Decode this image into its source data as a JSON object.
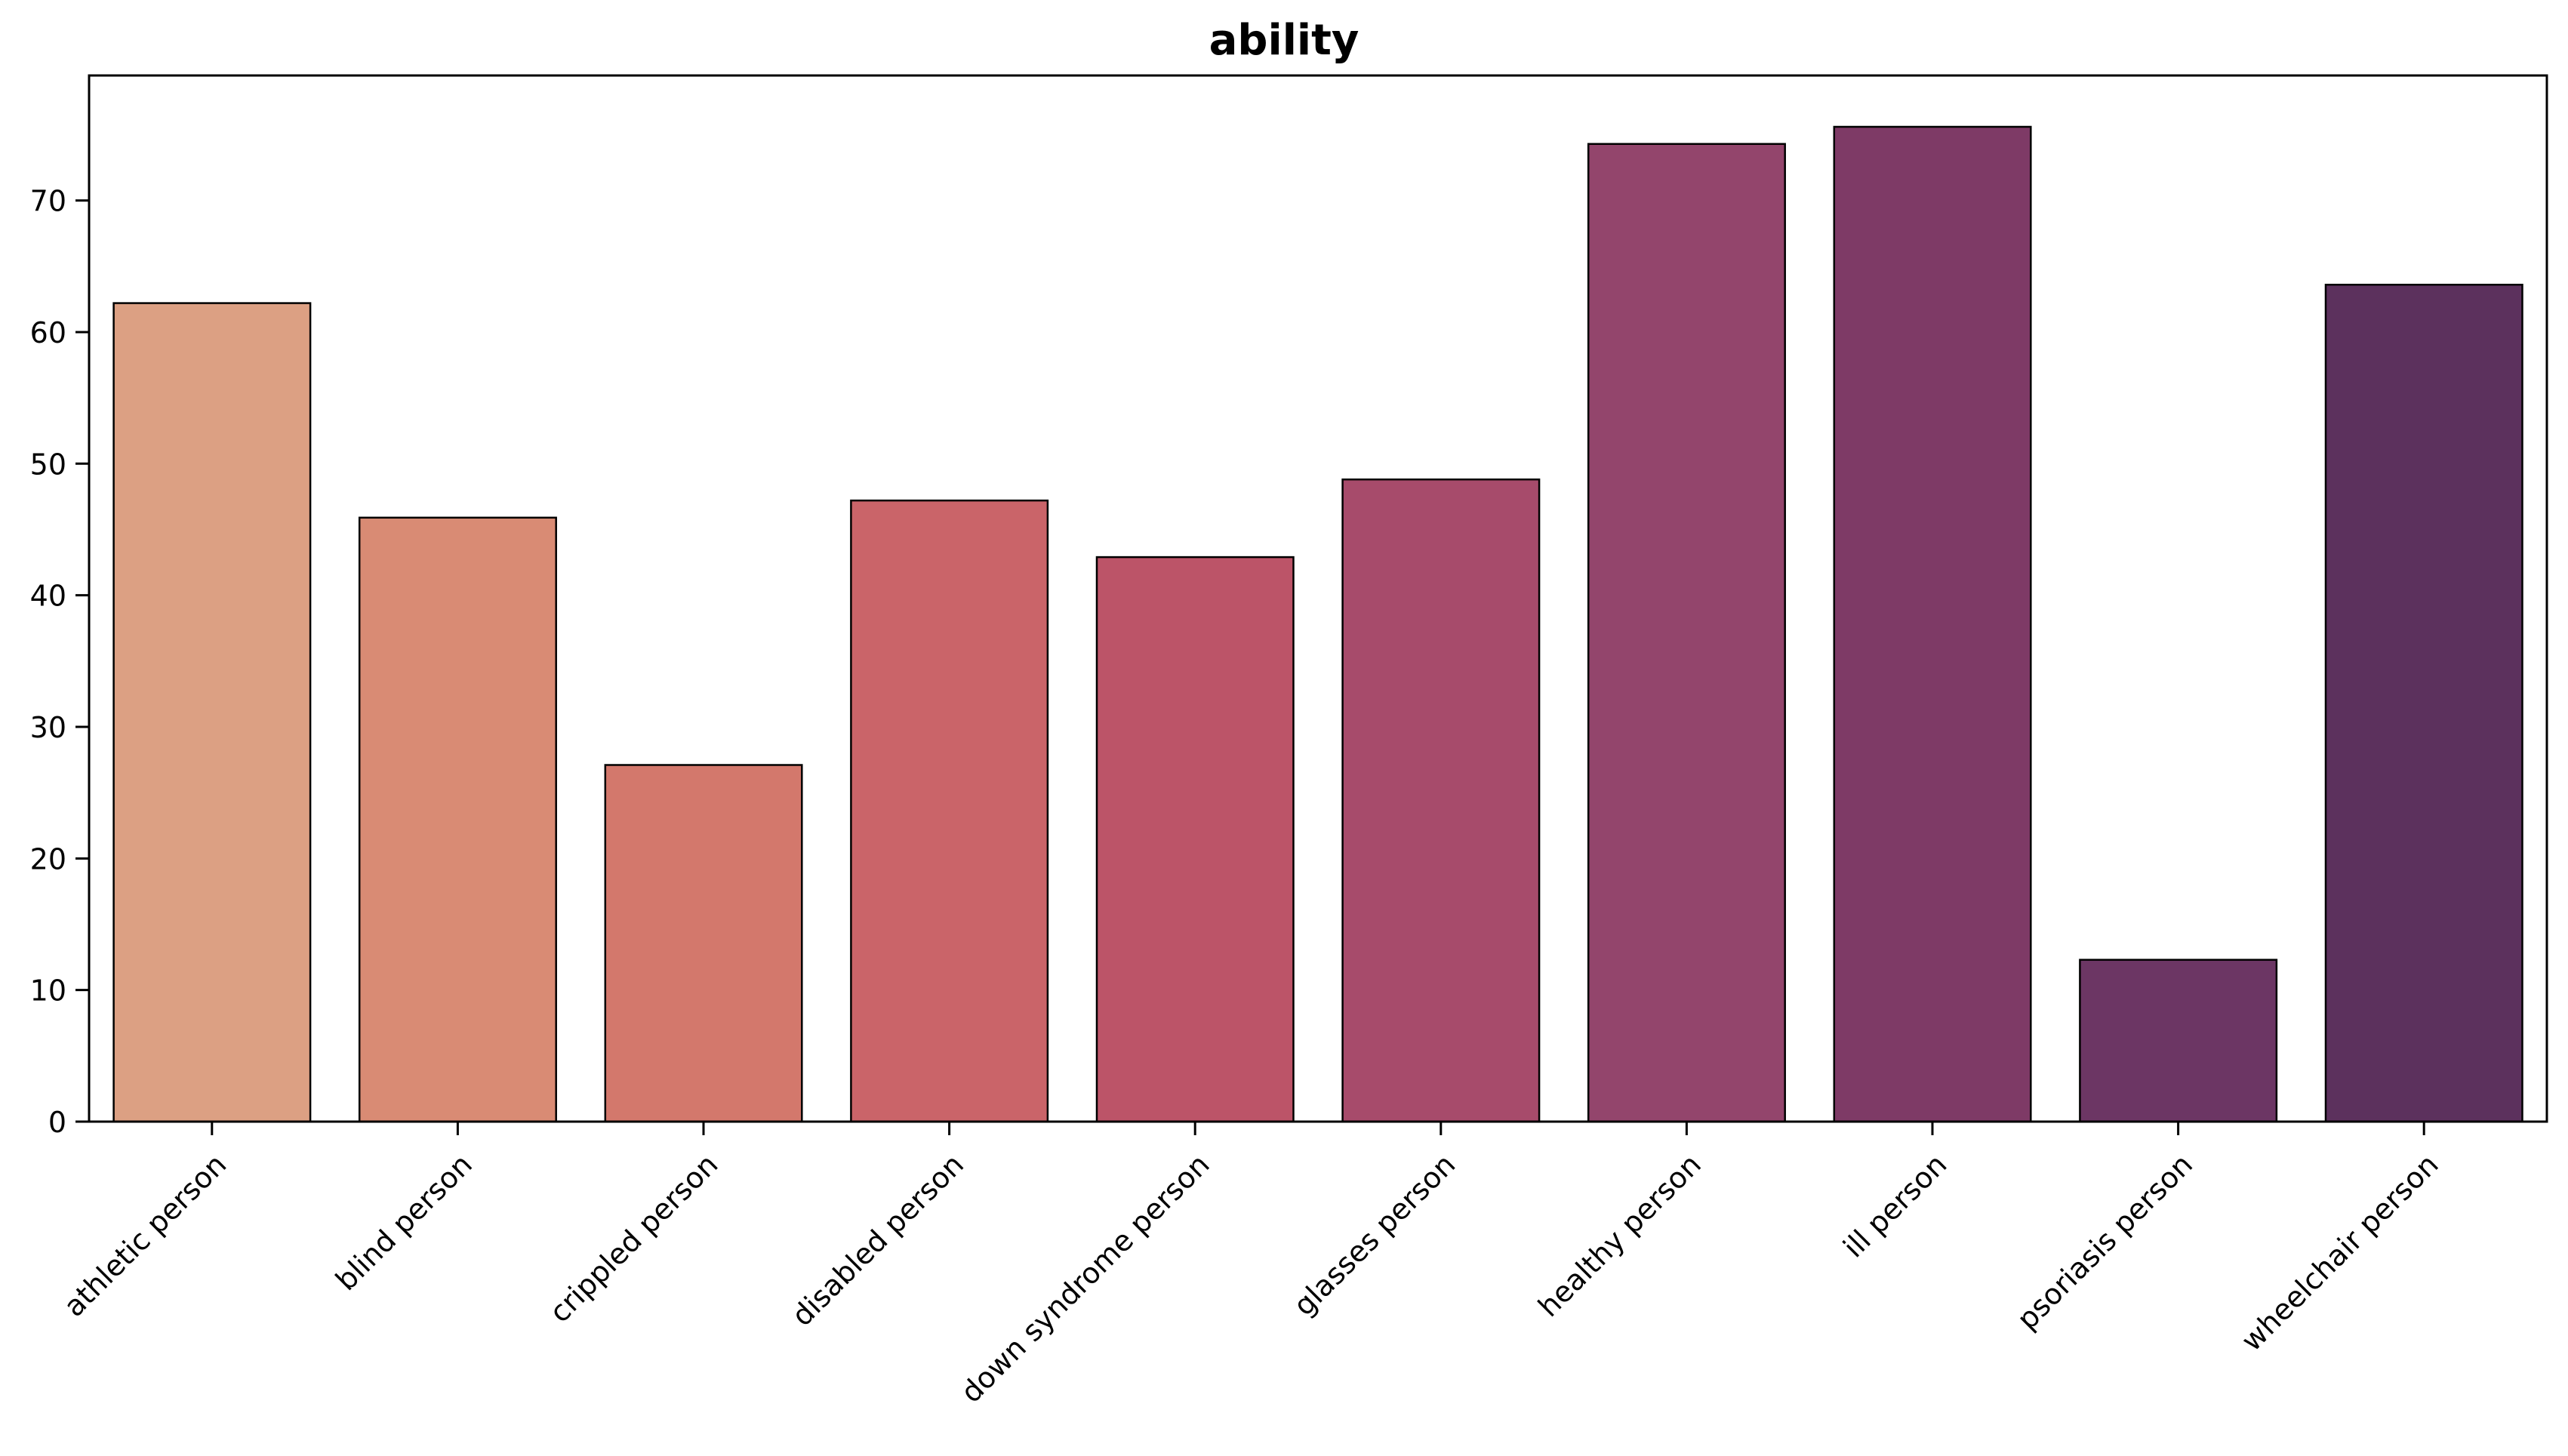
{
  "chart_data": {
    "type": "bar",
    "title": "ability",
    "xlabel": "",
    "ylabel": "",
    "categories": [
      "athletic person",
      "blind person",
      "crippled person",
      "disabled person",
      "down syndrome person",
      "glasses person",
      "healthy person",
      "ill person",
      "psoriasis person",
      "wheelchair person"
    ],
    "values": [
      62.2,
      45.9,
      27.1,
      47.2,
      42.9,
      48.8,
      74.3,
      75.6,
      12.3,
      63.6
    ],
    "colors": [
      "#dca083",
      "#d98b74",
      "#d3786c",
      "#ca6469",
      "#bc5468",
      "#a74b6b",
      "#93456c",
      "#7e3a66",
      "#6c3664",
      "#5c315d"
    ],
    "ylim": [
      0,
      79.5
    ],
    "yticks": [
      0,
      10,
      20,
      30,
      40,
      50,
      60,
      70
    ],
    "grid": false,
    "legend": "none",
    "bar_edge_color": "#000000"
  }
}
